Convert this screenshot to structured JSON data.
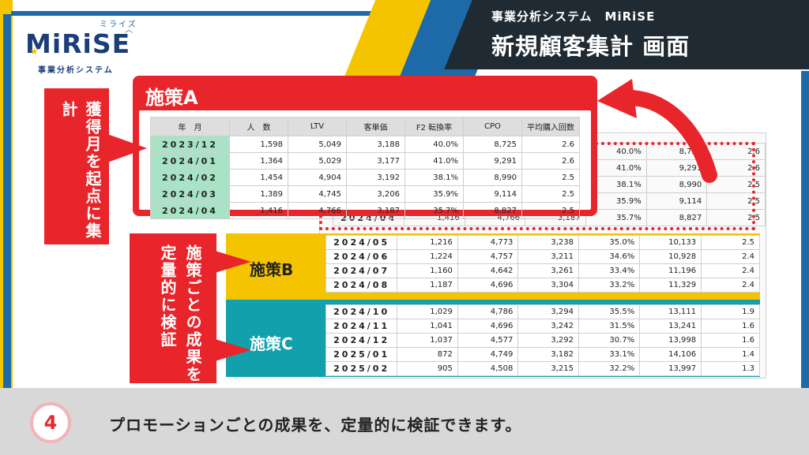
{
  "header": {
    "subtitle": "事業分析システム　MiRiSE",
    "title": "新規顧客集計 画面"
  },
  "logo": {
    "kana": "ミライズ",
    "word": "MiRiSE",
    "tagline": "事業分析システム"
  },
  "table": {
    "columns": [
      "年　月",
      "人　数",
      "LTV",
      "客単価",
      "F2 転換率",
      "CPO",
      "平均購入回数"
    ],
    "rows_a": [
      [
        "2023/12",
        "1,598",
        "5,049",
        "3,188",
        "40.0%",
        "8,725",
        "2.6"
      ],
      [
        "2024/01",
        "1,364",
        "5,029",
        "3,177",
        "41.0%",
        "9,291",
        "2.6"
      ],
      [
        "2024/02",
        "1,454",
        "4,904",
        "3,192",
        "38.1%",
        "8,990",
        "2.5"
      ],
      [
        "2024/03",
        "1,389",
        "4,745",
        "3,206",
        "35.9%",
        "9,114",
        "2.5"
      ],
      [
        "2024/04",
        "1,416",
        "4,766",
        "3,187",
        "35.7%",
        "8,827",
        "2.5"
      ]
    ],
    "rows_b": [
      [
        "2024/05",
        "1,216",
        "4,773",
        "3,238",
        "35.0%",
        "10,133",
        "2.5"
      ],
      [
        "2024/06",
        "1,224",
        "4,757",
        "3,211",
        "34.6%",
        "10,928",
        "2.4"
      ],
      [
        "2024/07",
        "1,160",
        "4,642",
        "3,261",
        "33.4%",
        "11,196",
        "2.4"
      ],
      [
        "2024/08",
        "1,187",
        "4,696",
        "3,304",
        "33.2%",
        "11,329",
        "2.4"
      ]
    ],
    "rows_c": [
      [
        "2024/10",
        "1,029",
        "4,786",
        "3,294",
        "35.5%",
        "13,111",
        "1.9"
      ],
      [
        "2024/11",
        "1,041",
        "4,696",
        "3,242",
        "31.5%",
        "13,241",
        "1.6"
      ],
      [
        "2024/12",
        "1,037",
        "4,577",
        "3,292",
        "30.7%",
        "13,998",
        "1.6"
      ],
      [
        "2025/01",
        "872",
        "4,749",
        "3,182",
        "33.1%",
        "14,106",
        "1.4"
      ],
      [
        "2025/02",
        "905",
        "4,508",
        "3,215",
        "32.2%",
        "13,997",
        "1.3"
      ]
    ]
  },
  "labels": {
    "measure_a": "施策A",
    "measure_b": "施策B",
    "measure_c": "施策C",
    "note_start": "獲得月を起点に集計",
    "note_verify": "施策ごとの成果を定量的に検証"
  },
  "footer": {
    "step": "4",
    "text": "プロモーションごとの成果を、定量的に検証できます。"
  },
  "colors": {
    "red": "#e8252b",
    "yellow": "#f5c400",
    "teal": "#12a0ac",
    "blue": "#1e6aa8",
    "dark": "#1f2a32",
    "highlight_green": "#a8e3c6"
  }
}
